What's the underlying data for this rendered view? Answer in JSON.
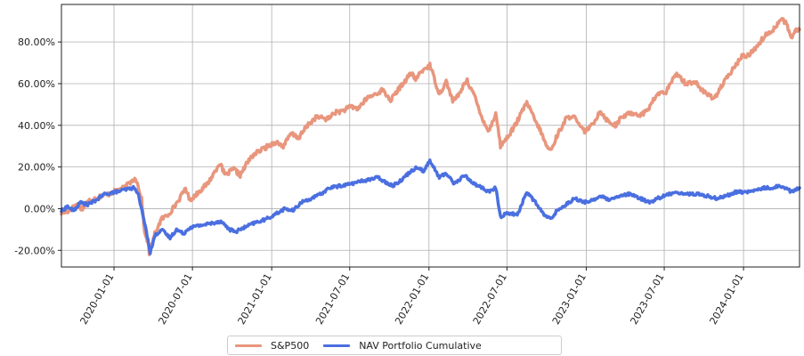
{
  "chart_data": {
    "type": "line",
    "title": "",
    "xlabel": "",
    "ylabel": "",
    "grid": true,
    "legend_placement": "bottom-center",
    "x_range": [
      "2019-09-01",
      "2024-05-10"
    ],
    "ylim": [
      -0.28,
      0.98
    ],
    "x_ticks": [
      "2020-01-01",
      "2020-07-01",
      "2021-01-01",
      "2021-07-01",
      "2022-01-01",
      "2022-07-01",
      "2023-01-01",
      "2023-07-01",
      "2024-01-01"
    ],
    "y_ticks": [
      {
        "value": -0.2,
        "label": "-20.00%"
      },
      {
        "value": 0.0,
        "label": "0.00%"
      },
      {
        "value": 0.2,
        "label": "20.00%"
      },
      {
        "value": 0.4,
        "label": "40.00%"
      },
      {
        "value": 0.6,
        "label": "60.00%"
      },
      {
        "value": 0.8,
        "label": "80.00%"
      }
    ],
    "series": [
      {
        "name": "S&P500",
        "color": "#e8967d",
        "points": [
          [
            "2019-09-01",
            -0.02
          ],
          [
            "2019-09-20",
            -0.01
          ],
          [
            "2019-10-05",
            0.02
          ],
          [
            "2019-10-20",
            0.0
          ],
          [
            "2019-11-05",
            0.04
          ],
          [
            "2019-12-01",
            0.06
          ],
          [
            "2019-12-20",
            0.07
          ],
          [
            "2020-01-10",
            0.09
          ],
          [
            "2020-01-25",
            0.1
          ],
          [
            "2020-02-10",
            0.13
          ],
          [
            "2020-02-20",
            0.15
          ],
          [
            "2020-03-05",
            0.05
          ],
          [
            "2020-03-12",
            -0.12
          ],
          [
            "2020-03-20",
            -0.16
          ],
          [
            "2020-03-23",
            -0.22
          ],
          [
            "2020-04-05",
            -0.12
          ],
          [
            "2020-04-20",
            -0.05
          ],
          [
            "2020-05-05",
            -0.03
          ],
          [
            "2020-05-20",
            0.01
          ],
          [
            "2020-06-05",
            0.06
          ],
          [
            "2020-06-15",
            0.1
          ],
          [
            "2020-06-25",
            0.04
          ],
          [
            "2020-07-15",
            0.08
          ],
          [
            "2020-08-05",
            0.12
          ],
          [
            "2020-08-20",
            0.17
          ],
          [
            "2020-09-02",
            0.22
          ],
          [
            "2020-09-15",
            0.16
          ],
          [
            "2020-10-05",
            0.19
          ],
          [
            "2020-10-20",
            0.16
          ],
          [
            "2020-11-05",
            0.22
          ],
          [
            "2020-11-20",
            0.26
          ],
          [
            "2020-12-15",
            0.29
          ],
          [
            "2021-01-10",
            0.32
          ],
          [
            "2021-01-28",
            0.3
          ],
          [
            "2021-02-15",
            0.36
          ],
          [
            "2021-03-05",
            0.34
          ],
          [
            "2021-03-25",
            0.4
          ],
          [
            "2021-04-15",
            0.44
          ],
          [
            "2021-05-12",
            0.43
          ],
          [
            "2021-05-25",
            0.46
          ],
          [
            "2021-06-15",
            0.47
          ],
          [
            "2021-07-05",
            0.49
          ],
          [
            "2021-07-20",
            0.48
          ],
          [
            "2021-08-10",
            0.53
          ],
          [
            "2021-08-30",
            0.55
          ],
          [
            "2021-09-15",
            0.57
          ],
          [
            "2021-10-04",
            0.52
          ],
          [
            "2021-10-25",
            0.58
          ],
          [
            "2021-11-20",
            0.65
          ],
          [
            "2021-12-01",
            0.62
          ],
          [
            "2021-12-15",
            0.66
          ],
          [
            "2022-01-03",
            0.69
          ],
          [
            "2022-01-25",
            0.55
          ],
          [
            "2022-02-10",
            0.61
          ],
          [
            "2022-02-25",
            0.52
          ],
          [
            "2022-03-10",
            0.54
          ],
          [
            "2022-03-29",
            0.62
          ],
          [
            "2022-04-15",
            0.55
          ],
          [
            "2022-05-01",
            0.45
          ],
          [
            "2022-05-20",
            0.37
          ],
          [
            "2022-06-05",
            0.46
          ],
          [
            "2022-06-16",
            0.3
          ],
          [
            "2022-07-01",
            0.34
          ],
          [
            "2022-07-20",
            0.4
          ],
          [
            "2022-08-16",
            0.51
          ],
          [
            "2022-09-05",
            0.42
          ],
          [
            "2022-09-20",
            0.36
          ],
          [
            "2022-09-30",
            0.3
          ],
          [
            "2022-10-12",
            0.28
          ],
          [
            "2022-10-25",
            0.35
          ],
          [
            "2022-11-15",
            0.43
          ],
          [
            "2022-12-01",
            0.45
          ],
          [
            "2022-12-15",
            0.4
          ],
          [
            "2022-12-28",
            0.37
          ],
          [
            "2023-01-15",
            0.4
          ],
          [
            "2023-02-02",
            0.47
          ],
          [
            "2023-02-20",
            0.42
          ],
          [
            "2023-03-10",
            0.4
          ],
          [
            "2023-03-25",
            0.44
          ],
          [
            "2023-04-15",
            0.46
          ],
          [
            "2023-05-10",
            0.45
          ],
          [
            "2023-05-25",
            0.48
          ],
          [
            "2023-06-15",
            0.55
          ],
          [
            "2023-07-05",
            0.56
          ],
          [
            "2023-07-30",
            0.65
          ],
          [
            "2023-08-20",
            0.6
          ],
          [
            "2023-09-10",
            0.61
          ],
          [
            "2023-09-30",
            0.56
          ],
          [
            "2023-10-25",
            0.53
          ],
          [
            "2023-11-15",
            0.6
          ],
          [
            "2023-12-01",
            0.65
          ],
          [
            "2023-12-28",
            0.73
          ],
          [
            "2024-01-15",
            0.74
          ],
          [
            "2024-02-01",
            0.78
          ],
          [
            "2024-02-20",
            0.83
          ],
          [
            "2024-03-10",
            0.86
          ],
          [
            "2024-03-28",
            0.91
          ],
          [
            "2024-04-10",
            0.89
          ],
          [
            "2024-04-19",
            0.82
          ],
          [
            "2024-04-30",
            0.85
          ],
          [
            "2024-05-10",
            0.86
          ]
        ]
      },
      {
        "name": "NAV Portfolio Cumulative",
        "color": "#4a6fe0",
        "points": [
          [
            "2019-09-01",
            -0.01
          ],
          [
            "2019-09-15",
            0.01
          ],
          [
            "2019-09-30",
            -0.01
          ],
          [
            "2019-10-15",
            0.03
          ],
          [
            "2019-11-01",
            0.02
          ],
          [
            "2019-11-20",
            0.04
          ],
          [
            "2019-12-10",
            0.07
          ],
          [
            "2020-01-05",
            0.08
          ],
          [
            "2020-01-25",
            0.09
          ],
          [
            "2020-02-15",
            0.1
          ],
          [
            "2020-02-25",
            0.08
          ],
          [
            "2020-03-10",
            -0.05
          ],
          [
            "2020-03-20",
            -0.15
          ],
          [
            "2020-03-25",
            -0.21
          ],
          [
            "2020-04-05",
            -0.13
          ],
          [
            "2020-04-20",
            -0.1
          ],
          [
            "2020-05-10",
            -0.14
          ],
          [
            "2020-05-25",
            -0.1
          ],
          [
            "2020-06-10",
            -0.12
          ],
          [
            "2020-06-25",
            -0.09
          ],
          [
            "2020-07-20",
            -0.08
          ],
          [
            "2020-08-15",
            -0.07
          ],
          [
            "2020-09-05",
            -0.06
          ],
          [
            "2020-09-25",
            -0.1
          ],
          [
            "2020-10-10",
            -0.11
          ],
          [
            "2020-10-30",
            -0.09
          ],
          [
            "2020-11-20",
            -0.07
          ],
          [
            "2020-12-20",
            -0.05
          ],
          [
            "2021-01-15",
            -0.02
          ],
          [
            "2021-02-01",
            0.0
          ],
          [
            "2021-02-20",
            -0.01
          ],
          [
            "2021-03-10",
            0.03
          ],
          [
            "2021-04-05",
            0.05
          ],
          [
            "2021-04-25",
            0.07
          ],
          [
            "2021-05-15",
            0.1
          ],
          [
            "2021-06-10",
            0.11
          ],
          [
            "2021-07-05",
            0.12
          ],
          [
            "2021-07-25",
            0.13
          ],
          [
            "2021-08-15",
            0.14
          ],
          [
            "2021-09-05",
            0.15
          ],
          [
            "2021-09-20",
            0.13
          ],
          [
            "2021-10-10",
            0.11
          ],
          [
            "2021-10-30",
            0.14
          ],
          [
            "2021-11-20",
            0.18
          ],
          [
            "2021-12-05",
            0.2
          ],
          [
            "2021-12-20",
            0.18
          ],
          [
            "2022-01-03",
            0.23
          ],
          [
            "2022-01-25",
            0.15
          ],
          [
            "2022-02-10",
            0.17
          ],
          [
            "2022-03-01",
            0.12
          ],
          [
            "2022-03-25",
            0.16
          ],
          [
            "2022-04-15",
            0.12
          ],
          [
            "2022-05-05",
            0.1
          ],
          [
            "2022-05-20",
            0.08
          ],
          [
            "2022-06-05",
            0.1
          ],
          [
            "2022-06-16",
            -0.04
          ],
          [
            "2022-07-01",
            -0.02
          ],
          [
            "2022-07-25",
            -0.03
          ],
          [
            "2022-08-16",
            0.08
          ],
          [
            "2022-09-05",
            0.03
          ],
          [
            "2022-09-25",
            -0.03
          ],
          [
            "2022-10-10",
            -0.05
          ],
          [
            "2022-10-25",
            -0.01
          ],
          [
            "2022-11-15",
            0.02
          ],
          [
            "2022-12-05",
            0.05
          ],
          [
            "2022-12-25",
            0.03
          ],
          [
            "2023-01-15",
            0.04
          ],
          [
            "2023-02-03",
            0.06
          ],
          [
            "2023-02-25",
            0.04
          ],
          [
            "2023-03-20",
            0.06
          ],
          [
            "2023-04-10",
            0.07
          ],
          [
            "2023-05-05",
            0.05
          ],
          [
            "2023-05-30",
            0.03
          ],
          [
            "2023-06-15",
            0.05
          ],
          [
            "2023-07-01",
            0.06
          ],
          [
            "2023-07-25",
            0.08
          ],
          [
            "2023-08-20",
            0.07
          ],
          [
            "2023-09-15",
            0.07
          ],
          [
            "2023-10-10",
            0.06
          ],
          [
            "2023-10-30",
            0.05
          ],
          [
            "2023-11-20",
            0.06
          ],
          [
            "2023-12-15",
            0.08
          ],
          [
            "2024-01-10",
            0.08
          ],
          [
            "2024-02-01",
            0.09
          ],
          [
            "2024-02-20",
            0.1
          ],
          [
            "2024-03-10",
            0.1
          ],
          [
            "2024-03-25",
            0.11
          ],
          [
            "2024-04-10",
            0.1
          ],
          [
            "2024-04-20",
            0.08
          ],
          [
            "2024-05-01",
            0.09
          ],
          [
            "2024-05-10",
            0.1
          ]
        ]
      }
    ]
  }
}
